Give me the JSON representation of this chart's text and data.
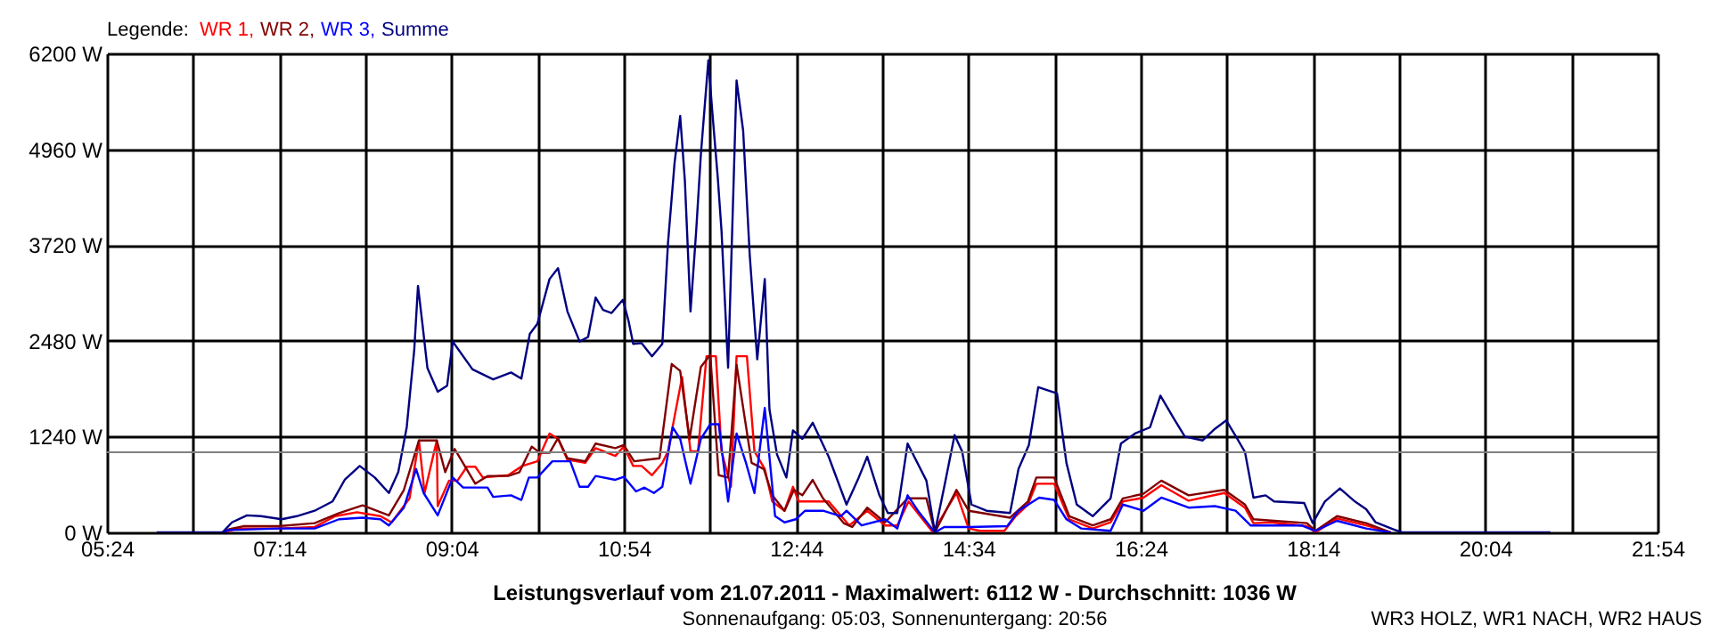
{
  "chart_data": {
    "type": "line",
    "title": "Leistungsverlauf vom 21.07.2011 - Maximalwert: 6112 W - Durchschnitt: 1036 W",
    "subtitle": "Sonnenaufgang: 05:03, Sonnenuntergang: 20:56",
    "annotations": [
      "WR3 HOLZ, WR1 NACH, WR2 HAUS"
    ],
    "legend_title": "Legende:",
    "legend": "top left",
    "grid": true,
    "marker": "none",
    "line_style": "solid",
    "xlim": [
      5.4,
      21.9
    ],
    "ylim": [
      0,
      6200
    ],
    "xticks": [
      {
        "value": 5.4,
        "label": "05:24"
      },
      {
        "value": 6.31667,
        "label": null
      },
      {
        "value": 7.23333,
        "label": "07:14"
      },
      {
        "value": 8.15,
        "label": null
      },
      {
        "value": 9.06667,
        "label": "09:04"
      },
      {
        "value": 9.98333,
        "label": null
      },
      {
        "value": 10.9,
        "label": "10:54"
      },
      {
        "value": 11.81667,
        "label": null
      },
      {
        "value": 12.73333,
        "label": "12:44"
      },
      {
        "value": 13.65,
        "label": null
      },
      {
        "value": 14.56667,
        "label": "14:34"
      },
      {
        "value": 15.48333,
        "label": null
      },
      {
        "value": 16.4,
        "label": "16:24"
      },
      {
        "value": 17.31667,
        "label": null
      },
      {
        "value": 18.23333,
        "label": "18:14"
      },
      {
        "value": 19.15,
        "label": null
      },
      {
        "value": 20.06667,
        "label": "20:04"
      },
      {
        "value": 20.98333,
        "label": null
      },
      {
        "value": 21.9,
        "label": "21:54"
      }
    ],
    "yticks": [
      {
        "value": 0,
        "label": "0 W"
      },
      {
        "value": 1240,
        "label": "1240 W"
      },
      {
        "value": 2480,
        "label": "2480 W"
      },
      {
        "value": 3720,
        "label": "3720 W"
      },
      {
        "value": 4960,
        "label": "4960 W"
      },
      {
        "value": 6200,
        "label": "6200 W"
      }
    ],
    "ref_lines": [
      {
        "axis": "y",
        "value": 1036,
        "color": "#808080"
      }
    ],
    "series": [
      {
        "name": "WR 1,",
        "color": "#ff0000",
        "x": [
          6.63,
          6.7,
          6.79,
          7.23,
          7.61,
          7.83,
          8.06,
          8.31,
          8.43,
          8.62,
          8.72,
          8.78,
          8.91,
          8.92,
          9.04,
          9.13,
          9.23,
          9.32,
          9.4,
          9.67,
          9.82,
          9.98,
          10.11,
          10.2,
          10.3,
          10.49,
          10.6,
          10.81,
          10.9,
          11.0,
          11.09,
          11.2,
          11.31,
          11.37,
          11.52,
          11.61,
          11.69,
          11.78,
          11.88,
          11.94,
          12.04,
          12.1,
          12.21,
          12.29,
          12.4,
          12.48,
          12.61,
          12.7,
          12.76,
          13.08,
          13.3,
          13.49,
          13.68,
          13.81,
          13.93,
          14.19,
          14.31,
          14.44,
          14.57,
          14.69,
          14.95,
          15.07,
          15.2,
          15.29,
          15.48,
          15.64,
          15.89,
          16.08,
          16.21,
          16.43,
          16.62,
          16.91,
          17.29,
          17.51,
          17.6,
          17.79,
          18.17,
          18.26,
          18.49,
          18.8,
          19.06
        ],
        "values": [
          0,
          20,
          50,
          50,
          70,
          210,
          260,
          210,
          130,
          440,
          1190,
          510,
          1190,
          340,
          670,
          670,
          850,
          850,
          710,
          740,
          860,
          920,
          1280,
          1210,
          940,
          900,
          1090,
          990,
          1110,
          860,
          860,
          740,
          900,
          1050,
          2010,
          1050,
          1050,
          2280,
          2280,
          1050,
          590,
          2280,
          2280,
          1050,
          820,
          400,
          280,
          590,
          400,
          400,
          90,
          280,
          90,
          90,
          400,
          0,
          250,
          510,
          50,
          20,
          20,
          210,
          360,
          630,
          630,
          170,
          50,
          130,
          400,
          450,
          610,
          410,
          510,
          320,
          120,
          130,
          80,
          0,
          180,
          90,
          0
        ]
      },
      {
        "name": "WR 2,",
        "color": "#800000",
        "x": [
          6.63,
          6.7,
          6.85,
          7.23,
          7.61,
          7.87,
          8.12,
          8.4,
          8.56,
          8.72,
          8.91,
          9.0,
          9.1,
          9.32,
          9.45,
          9.67,
          9.79,
          9.92,
          10.01,
          10.11,
          10.2,
          10.3,
          10.49,
          10.6,
          10.81,
          10.9,
          11.01,
          11.28,
          11.41,
          11.5,
          11.6,
          11.72,
          11.82,
          11.91,
          12.01,
          12.1,
          12.26,
          12.39,
          12.48,
          12.61,
          12.71,
          12.8,
          12.91,
          13.02,
          13.24,
          13.33,
          13.49,
          13.68,
          13.92,
          14.12,
          14.21,
          14.44,
          14.57,
          15.01,
          15.2,
          15.29,
          15.48,
          15.64,
          15.89,
          16.08,
          16.21,
          16.43,
          16.62,
          16.91,
          17.29,
          17.51,
          17.6,
          18.17,
          18.26,
          18.49,
          18.8,
          19.06
        ],
        "values": [
          0,
          40,
          80,
          80,
          120,
          250,
          350,
          220,
          550,
          1190,
          1190,
          780,
          1080,
          630,
          730,
          730,
          780,
          1110,
          1030,
          1030,
          1220,
          960,
          920,
          1150,
          1090,
          1130,
          920,
          960,
          2180,
          2090,
          1210,
          2140,
          2300,
          740,
          710,
          2170,
          900,
          820,
          480,
          280,
          550,
          480,
          680,
          440,
          120,
          70,
          320,
          130,
          440,
          440,
          0,
          550,
          280,
          190,
          400,
          710,
          710,
          210,
          90,
          170,
          440,
          500,
          670,
          480,
          550,
          360,
          170,
          120,
          20,
          210,
          120,
          0
        ]
      },
      {
        "name": "WR 3,",
        "color": "#0000ff",
        "x": [
          6.63,
          6.7,
          7.23,
          7.61,
          7.87,
          8.12,
          8.31,
          8.4,
          8.56,
          8.69,
          8.77,
          8.92,
          9.08,
          9.19,
          9.45,
          9.51,
          9.7,
          9.81,
          9.89,
          9.98,
          10.14,
          10.33,
          10.43,
          10.52,
          10.6,
          10.81,
          10.9,
          11.03,
          11.12,
          11.22,
          11.31,
          11.42,
          11.5,
          11.61,
          11.72,
          11.82,
          11.91,
          12.01,
          12.1,
          12.2,
          12.29,
          12.4,
          12.51,
          12.61,
          12.73,
          12.83,
          13.02,
          13.21,
          13.27,
          13.43,
          13.68,
          13.81,
          13.92,
          14.03,
          14.21,
          14.31,
          14.57,
          14.98,
          15.1,
          15.32,
          15.48,
          15.61,
          15.77,
          16.08,
          16.21,
          16.43,
          16.62,
          16.91,
          17.19,
          17.41,
          17.57,
          17.79,
          18.11,
          18.26,
          18.49,
          18.8,
          19.06
        ],
        "values": [
          0,
          30,
          50,
          50,
          170,
          190,
          170,
          90,
          320,
          820,
          510,
          220,
          710,
          580,
          580,
          460,
          480,
          420,
          710,
          710,
          920,
          920,
          590,
          590,
          730,
          680,
          720,
          530,
          580,
          510,
          590,
          1360,
          1210,
          630,
          1210,
          1400,
          1400,
          400,
          1280,
          900,
          510,
          1610,
          210,
          130,
          170,
          280,
          280,
          210,
          280,
          90,
          170,
          50,
          480,
          280,
          0,
          70,
          70,
          80,
          280,
          450,
          420,
          170,
          50,
          20,
          360,
          280,
          450,
          320,
          340,
          280,
          90,
          90,
          90,
          20,
          150,
          50,
          0
        ]
      },
      {
        "name": "Summe",
        "color": "#000080",
        "x": [
          5.93,
          6.63,
          6.73,
          6.89,
          7.04,
          7.26,
          7.42,
          7.61,
          7.8,
          7.93,
          8.09,
          8.25,
          8.4,
          8.5,
          8.59,
          8.67,
          8.71,
          8.76,
          8.81,
          8.92,
          9.02,
          9.08,
          9.29,
          9.51,
          9.7,
          9.81,
          9.9,
          9.98,
          10.11,
          10.2,
          10.3,
          10.43,
          10.52,
          10.6,
          10.68,
          10.77,
          10.89,
          10.95,
          11.0,
          11.09,
          11.2,
          11.31,
          11.37,
          11.44,
          11.5,
          11.55,
          11.61,
          11.67,
          11.72,
          11.8,
          11.84,
          11.9,
          11.94,
          12.01,
          12.07,
          12.1,
          12.17,
          12.24,
          12.32,
          12.4,
          12.45,
          12.53,
          12.63,
          12.7,
          12.8,
          12.91,
          13.08,
          13.27,
          13.4,
          13.49,
          13.62,
          13.71,
          13.81,
          13.92,
          14.12,
          14.21,
          14.31,
          14.42,
          14.5,
          14.6,
          14.76,
          15.01,
          15.1,
          15.21,
          15.31,
          15.51,
          15.61,
          15.72,
          15.89,
          16.08,
          16.19,
          16.34,
          16.5,
          16.61,
          16.75,
          16.87,
          17.06,
          17.19,
          17.31,
          17.41,
          17.51,
          17.6,
          17.73,
          17.82,
          18.14,
          18.23,
          18.36,
          18.52,
          18.68,
          18.8,
          18.9,
          19.09,
          19.18,
          20.76
        ],
        "values": [
          0,
          0,
          130,
          220,
          210,
          170,
          210,
          280,
          400,
          680,
          860,
          710,
          510,
          780,
          1360,
          2360,
          3190,
          2670,
          2130,
          1820,
          1900,
          2470,
          2110,
          1980,
          2070,
          1990,
          2570,
          2700,
          3280,
          3420,
          2860,
          2470,
          2530,
          3040,
          2880,
          2840,
          3010,
          2740,
          2440,
          2450,
          2280,
          2440,
          3740,
          4780,
          5390,
          4550,
          2860,
          3900,
          4890,
          6112,
          5470,
          4590,
          3900,
          2130,
          4590,
          5850,
          5200,
          3590,
          2240,
          3280,
          1590,
          1010,
          710,
          1320,
          1210,
          1420,
          980,
          360,
          710,
          980,
          480,
          250,
          250,
          1150,
          670,
          0,
          590,
          1260,
          1050,
          360,
          280,
          250,
          820,
          1130,
          1880,
          1800,
          900,
          360,
          210,
          440,
          1150,
          1280,
          1360,
          1770,
          1480,
          1240,
          1190,
          1340,
          1450,
          1250,
          1040,
          450,
          480,
          400,
          380,
          120,
          400,
          570,
          400,
          300,
          130,
          40,
          0,
          0
        ]
      }
    ]
  }
}
